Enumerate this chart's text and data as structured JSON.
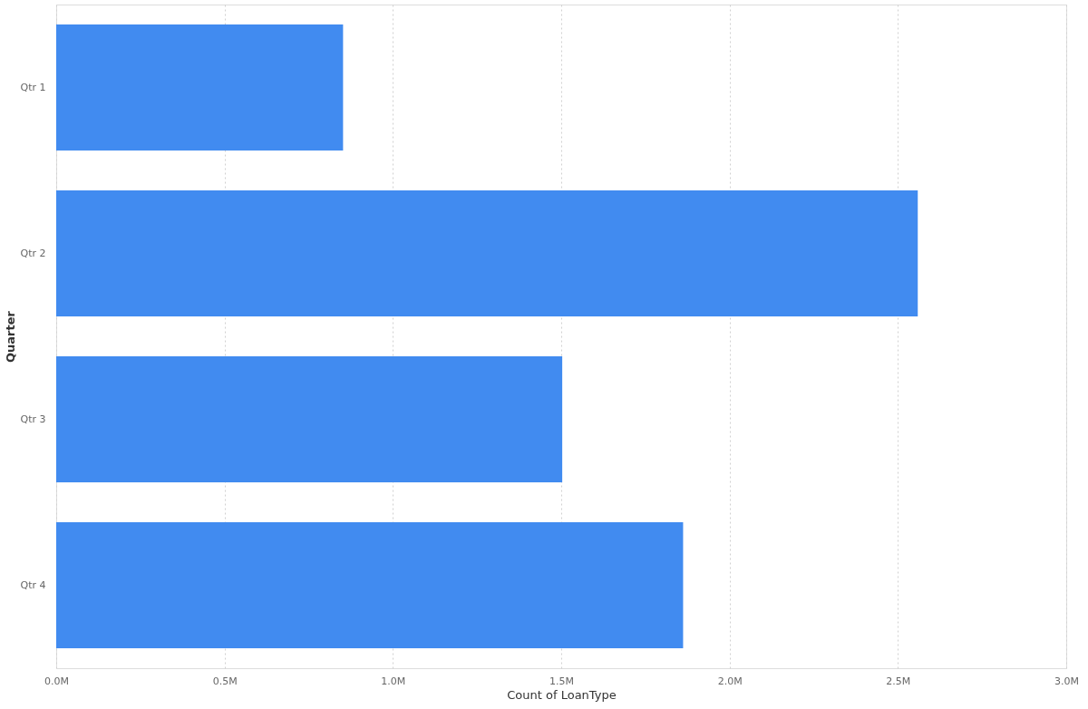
{
  "chart_data": {
    "type": "bar",
    "orientation": "horizontal",
    "xlabel": "Count of LoanType",
    "ylabel": "Quarter",
    "categories": [
      "Qtr 1",
      "Qtr 2",
      "Qtr 3",
      "Qtr 4"
    ],
    "values": [
      852000,
      2559000,
      1503000,
      1862000
    ],
    "color": "#418bf0",
    "xlim": [
      0,
      3000000
    ],
    "xticks": [
      {
        "value": 0,
        "label": "0.0M"
      },
      {
        "value": 500000,
        "label": "0.5M"
      },
      {
        "value": 1000000,
        "label": "1.0M"
      },
      {
        "value": 1500000,
        "label": "1.5M"
      },
      {
        "value": 2000000,
        "label": "2.0M"
      },
      {
        "value": 2500000,
        "label": "2.5M"
      },
      {
        "value": 3000000,
        "label": "3.0M"
      }
    ],
    "grid": "x"
  }
}
